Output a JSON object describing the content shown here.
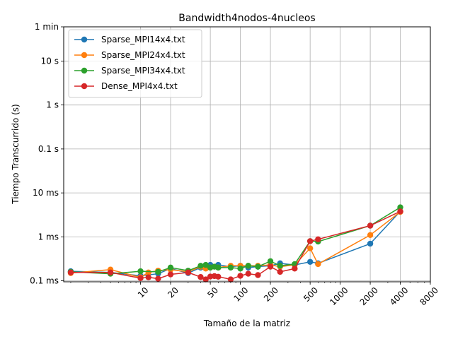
{
  "chart_data": {
    "type": "line",
    "title": "Bandwidth4nodos-4nucleos",
    "xlabel": "Tamaño de la matriz",
    "ylabel": "Tiempo Transcurrido (s)",
    "x_scale": "log",
    "y_scale": "log",
    "xlim": [
      1.7,
      8000
    ],
    "ylim": [
      9.5e-05,
      60
    ],
    "x_ticks": [
      10,
      20,
      50,
      100,
      200,
      500,
      1000,
      2000,
      4000,
      8000
    ],
    "x_tick_labels": [
      "10",
      "20",
      "50",
      "100",
      "200",
      "500",
      "1000",
      "2000",
      "4000",
      "8000"
    ],
    "y_ticks": [
      0.0001,
      0.001,
      0.01,
      0.1,
      1,
      10,
      60
    ],
    "y_tick_labels": [
      "0.1 ms",
      "1 ms",
      "10 ms",
      "0.1 s",
      "1 s",
      "10 s",
      "1 min"
    ],
    "grid": true,
    "legend_position": "top-left",
    "series": [
      {
        "name": "Sparse_MPI14x4.txt",
        "color": "#1f77b4",
        "points": [
          [
            2,
            0.000165
          ],
          [
            5,
            0.000155
          ],
          [
            10,
            0.00013
          ],
          [
            15,
            0.000145
          ],
          [
            20,
            0.00019
          ],
          [
            30,
            0.00015
          ],
          [
            40,
            0.0002
          ],
          [
            50,
            0.00023
          ],
          [
            60,
            0.00023
          ],
          [
            80,
            0.00021
          ],
          [
            100,
            0.00022
          ],
          [
            120,
            0.0002
          ],
          [
            150,
            0.00021
          ],
          [
            200,
            0.00022
          ],
          [
            250,
            0.00025
          ],
          [
            350,
            0.00023
          ],
          [
            500,
            0.00027
          ],
          [
            600,
            0.00025
          ],
          [
            2000,
            0.0007
          ],
          [
            4000,
            0.0038
          ]
        ]
      },
      {
        "name": "Sparse_MPI24x4.txt",
        "color": "#ff7f0e",
        "points": [
          [
            2,
            0.00015
          ],
          [
            5,
            0.00018
          ],
          [
            10,
            0.00012
          ],
          [
            12,
            0.000155
          ],
          [
            15,
            0.00017
          ],
          [
            20,
            0.00018
          ],
          [
            30,
            0.00016
          ],
          [
            40,
            0.00021
          ],
          [
            45,
            0.00019
          ],
          [
            50,
            0.0002
          ],
          [
            60,
            0.0002
          ],
          [
            80,
            0.00022
          ],
          [
            100,
            0.00022
          ],
          [
            120,
            0.00022
          ],
          [
            150,
            0.00022
          ],
          [
            200,
            0.00023
          ],
          [
            250,
            0.00021
          ],
          [
            350,
            0.00023
          ],
          [
            500,
            0.00055
          ],
          [
            600,
            0.00024
          ],
          [
            2000,
            0.0011
          ],
          [
            4000,
            0.0037
          ]
        ]
      },
      {
        "name": "Sparse_MPI34x4.txt",
        "color": "#2ca02c",
        "points": [
          [
            2,
            0.00016
          ],
          [
            5,
            0.000145
          ],
          [
            10,
            0.000165
          ],
          [
            15,
            0.00016
          ],
          [
            20,
            0.0002
          ],
          [
            30,
            0.00017
          ],
          [
            40,
            0.00022
          ],
          [
            45,
            0.00023
          ],
          [
            50,
            0.0002
          ],
          [
            55,
            0.00021
          ],
          [
            60,
            0.0002
          ],
          [
            80,
            0.0002
          ],
          [
            100,
            0.00019
          ],
          [
            120,
            0.00022
          ],
          [
            150,
            0.00021
          ],
          [
            200,
            0.00028
          ],
          [
            250,
            0.00022
          ],
          [
            350,
            0.00024
          ],
          [
            500,
            0.0008
          ],
          [
            600,
            0.00078
          ],
          [
            2000,
            0.0018
          ],
          [
            4000,
            0.0047
          ]
        ]
      },
      {
        "name": "Dense_MPI4x4.txt",
        "color": "#d62728",
        "points": [
          [
            2,
            0.000155
          ],
          [
            5,
            0.000155
          ],
          [
            10,
            0.000115
          ],
          [
            12,
            0.00012
          ],
          [
            15,
            0.000112
          ],
          [
            20,
            0.00014
          ],
          [
            30,
            0.000155
          ],
          [
            40,
            0.000122
          ],
          [
            45,
            0.000108
          ],
          [
            50,
            0.000125
          ],
          [
            55,
            0.000128
          ],
          [
            60,
            0.000124
          ],
          [
            80,
            0.000108
          ],
          [
            100,
            0.00013
          ],
          [
            120,
            0.000145
          ],
          [
            150,
            0.000135
          ],
          [
            200,
            0.00021
          ],
          [
            250,
            0.00016
          ],
          [
            350,
            0.00019
          ],
          [
            500,
            0.0008
          ],
          [
            600,
            0.00088
          ],
          [
            2000,
            0.0018
          ],
          [
            4000,
            0.0038
          ]
        ]
      }
    ]
  }
}
